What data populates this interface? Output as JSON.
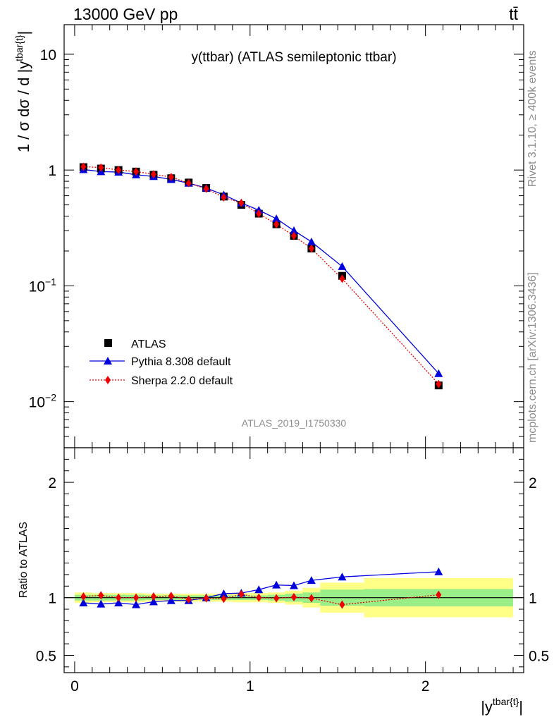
{
  "header": {
    "left": "13000 GeV pp",
    "right": "tt̄"
  },
  "side": {
    "rivet": "Rivet 3.1.10, ≥ 400k events",
    "mcplots": "mcplots.cern.ch [arXiv:1306.3436]"
  },
  "chart_data": [
    {
      "type": "scatter",
      "title": "y(ttbar) (ATLAS semileptonic ttbar)",
      "watermark": "ATLAS_2019_I1750330",
      "ylabel": "1 / σ dσ / d |y^{tbar{t}}|",
      "yscale": "log",
      "ylim": [
        0.004,
        18
      ],
      "xlim": [
        -0.06,
        2.56
      ],
      "y_ticks": [
        {
          "value": 0.01,
          "label": "10^-2"
        },
        {
          "value": 0.1,
          "label": "10^-1"
        },
        {
          "value": 1,
          "label": "1"
        },
        {
          "value": 10,
          "label": "10"
        }
      ],
      "legend": {
        "placement": "lower-left"
      },
      "x": [
        0.05,
        0.15,
        0.25,
        0.35,
        0.45,
        0.55,
        0.65,
        0.75,
        0.85,
        0.95,
        1.05,
        1.15,
        1.25,
        1.35,
        1.525,
        2.075
      ],
      "series": [
        {
          "name": "ATLAS",
          "marker": "square",
          "color": "#000000",
          "values": [
            1.06,
            1.03,
            1.0,
            0.97,
            0.91,
            0.85,
            0.78,
            0.7,
            0.59,
            0.5,
            0.42,
            0.34,
            0.27,
            0.21,
            0.122,
            0.0138
          ]
        },
        {
          "name": "Pythia 8.308 default",
          "marker": "triangle",
          "color": "#0000dd",
          "line": "solid",
          "values": [
            1.01,
            0.97,
            0.96,
            0.91,
            0.88,
            0.83,
            0.77,
            0.7,
            0.61,
            0.52,
            0.45,
            0.38,
            0.3,
            0.24,
            0.147,
            0.0175
          ]
        },
        {
          "name": "Sherpa 2.2.0 default",
          "marker": "diamond",
          "color": "#ee0000",
          "line": "dotted",
          "values": [
            1.07,
            1.05,
            1.0,
            0.97,
            0.92,
            0.87,
            0.77,
            0.69,
            0.58,
            0.52,
            0.42,
            0.34,
            0.27,
            0.21,
            0.115,
            0.0142
          ]
        }
      ]
    },
    {
      "type": "scatter",
      "xlabel": "|y^{tbar{t}}|",
      "ylabel": "Ratio to ATLAS",
      "ylim": [
        0.35,
        2.3
      ],
      "xlim": [
        -0.06,
        2.56
      ],
      "x_ticks": [
        0,
        1,
        2
      ],
      "y_ticks": [
        0.5,
        1,
        2
      ],
      "x": [
        0.05,
        0.15,
        0.25,
        0.35,
        0.45,
        0.55,
        0.65,
        0.75,
        0.85,
        0.95,
        1.05,
        1.15,
        1.25,
        1.35,
        1.525,
        2.075
      ],
      "bins": [
        [
          0.0,
          0.1
        ],
        [
          0.1,
          0.2
        ],
        [
          0.2,
          0.3
        ],
        [
          0.3,
          0.4
        ],
        [
          0.4,
          0.5
        ],
        [
          0.5,
          0.6
        ],
        [
          0.6,
          0.7
        ],
        [
          0.7,
          0.8
        ],
        [
          0.8,
          0.9
        ],
        [
          0.9,
          1.0
        ],
        [
          1.0,
          1.1
        ],
        [
          1.1,
          1.2
        ],
        [
          1.2,
          1.3
        ],
        [
          1.3,
          1.4
        ],
        [
          1.4,
          1.65
        ],
        [
          1.65,
          2.5
        ]
      ],
      "band_stat": [
        0.025,
        0.025,
        0.025,
        0.025,
        0.02,
        0.02,
        0.02,
        0.02,
        0.02,
        0.02,
        0.02,
        0.025,
        0.035,
        0.045,
        0.07,
        0.075
      ],
      "band_total": [
        0.045,
        0.04,
        0.04,
        0.04,
        0.035,
        0.035,
        0.035,
        0.035,
        0.035,
        0.04,
        0.04,
        0.045,
        0.06,
        0.085,
        0.13,
        0.17
      ],
      "series": [
        {
          "name": "Pythia 8.308 default",
          "marker": "triangle",
          "color": "#0000dd",
          "line": "solid",
          "values": [
            0.955,
            0.945,
            0.955,
            0.94,
            0.965,
            0.975,
            0.975,
            1.0,
            1.035,
            1.04,
            1.07,
            1.11,
            1.105,
            1.15,
            1.18,
            1.225
          ]
        },
        {
          "name": "Sherpa 2.2.0 default",
          "marker": "diamond",
          "color": "#ee0000",
          "line": "dotted",
          "values": [
            1.01,
            1.02,
            1.0,
            1.0,
            1.01,
            1.015,
            0.985,
            0.995,
            0.99,
            1.03,
            1.0,
            0.995,
            1.005,
            0.995,
            0.94,
            1.025
          ]
        }
      ]
    }
  ]
}
